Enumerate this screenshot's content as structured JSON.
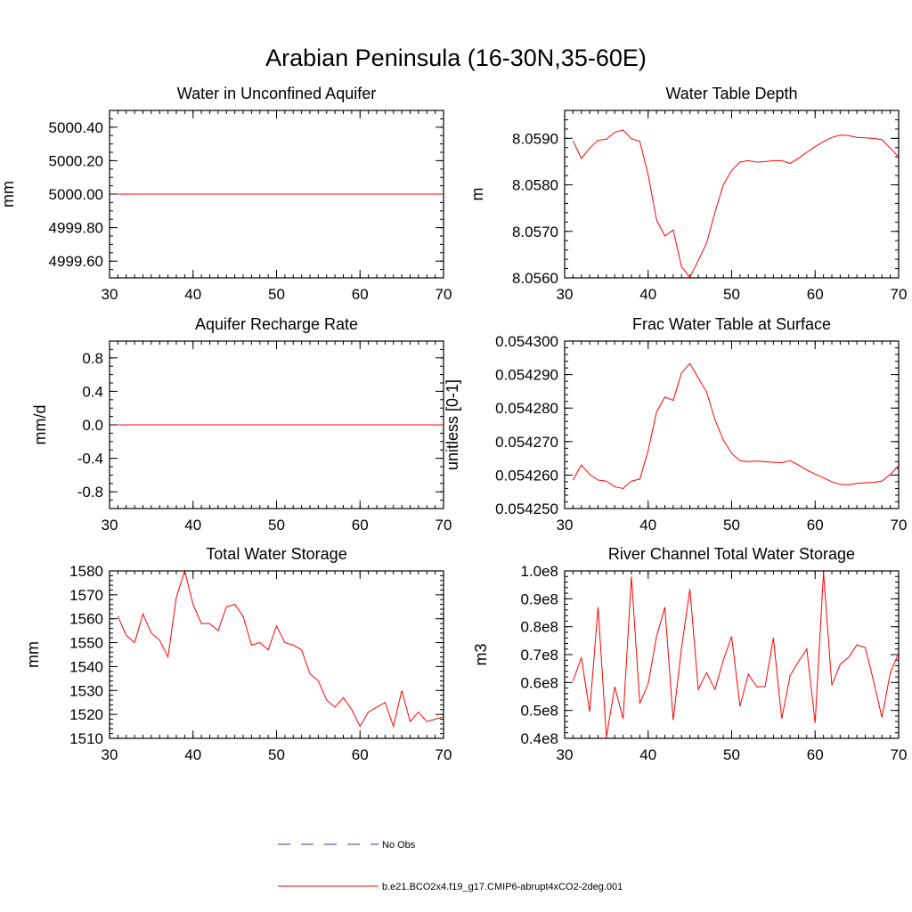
{
  "title": "Arabian Peninsula (16-30N,35-60E)",
  "chart_data": [
    {
      "type": "line",
      "title": "Water in Unconfined Aquifer",
      "ylabel": "mm",
      "xlim": [
        30,
        70
      ],
      "ylim": [
        4999.5,
        5000.5
      ],
      "xticks": [
        30,
        40,
        50,
        60,
        70
      ],
      "xtick_labels": [
        "30",
        "40",
        "50",
        "60",
        "70"
      ],
      "yticks": [
        4999.6,
        4999.8,
        5000.0,
        5000.2,
        5000.4
      ],
      "ytick_labels": [
        "4999.60",
        "4999.80",
        "5000.00",
        "5000.20",
        "5000.40"
      ],
      "minor_step": 0.05,
      "x": [
        31,
        32,
        33,
        34,
        35,
        36,
        37,
        38,
        39,
        40,
        41,
        42,
        43,
        44,
        45,
        46,
        47,
        48,
        49,
        50,
        51,
        52,
        53,
        54,
        55,
        56,
        57,
        58,
        59,
        60,
        61,
        62,
        63,
        64,
        65,
        66,
        67,
        68,
        69,
        70
      ],
      "series": [
        {
          "name": "b.e21.BCO2x4.f19_g17.CMIP6-abrupt4xCO2-2deg.001",
          "color": "#ff0000",
          "values": [
            5000,
            5000,
            5000,
            5000,
            5000,
            5000,
            5000,
            5000,
            5000,
            5000,
            5000,
            5000,
            5000,
            5000,
            5000,
            5000,
            5000,
            5000,
            5000,
            5000,
            5000,
            5000,
            5000,
            5000,
            5000,
            5000,
            5000,
            5000,
            5000,
            5000,
            5000,
            5000,
            5000,
            5000,
            5000,
            5000,
            5000,
            5000,
            5000,
            5000
          ]
        }
      ]
    },
    {
      "type": "line",
      "title": "Water Table Depth",
      "ylabel": "m",
      "xlim": [
        30,
        70
      ],
      "ylim": [
        8.056,
        8.0596
      ],
      "xticks": [
        30,
        40,
        50,
        60,
        70
      ],
      "xtick_labels": [
        "30",
        "40",
        "50",
        "60",
        "70"
      ],
      "yticks": [
        8.056,
        8.057,
        8.058,
        8.059
      ],
      "ytick_labels": [
        "8.0560",
        "8.0570",
        "8.0580",
        "8.0590"
      ],
      "minor_step": 0.0002,
      "x": [
        31,
        32,
        33,
        34,
        35,
        36,
        37,
        38,
        39,
        40,
        41,
        42,
        43,
        44,
        45,
        46,
        47,
        48,
        49,
        50,
        51,
        52,
        53,
        54,
        55,
        56,
        57,
        58,
        59,
        60,
        61,
        62,
        63,
        64,
        65,
        66,
        67,
        68,
        69,
        70
      ],
      "series": [
        {
          "name": "b.e21.BCO2x4.f19_g17.CMIP6-abrupt4xCO2-2deg.001",
          "color": "#ff0000",
          "values": [
            8.05895,
            8.05857,
            8.05879,
            8.05896,
            8.05898,
            8.05913,
            8.05918,
            8.05899,
            8.05894,
            8.05822,
            8.05725,
            8.0569,
            8.05703,
            8.05624,
            8.05601,
            8.05637,
            8.05675,
            8.05741,
            8.058,
            8.05831,
            8.05849,
            8.05852,
            8.05849,
            8.0585,
            8.05852,
            8.05852,
            8.05846,
            8.05857,
            8.0587,
            8.05882,
            8.05893,
            8.05902,
            8.05907,
            8.05906,
            8.05902,
            8.05901,
            8.059,
            8.05897,
            8.05879,
            8.0586
          ]
        }
      ]
    },
    {
      "type": "line",
      "title": "Aquifer Recharge Rate",
      "ylabel": "mm/d",
      "xlim": [
        30,
        70
      ],
      "ylim": [
        -1.0,
        1.0
      ],
      "xticks": [
        30,
        40,
        50,
        60,
        70
      ],
      "xtick_labels": [
        "30",
        "40",
        "50",
        "60",
        "70"
      ],
      "yticks": [
        -0.8,
        -0.4,
        0.0,
        0.4,
        0.8
      ],
      "ytick_labels": [
        "-0.8",
        "-0.4",
        "0.0",
        "0.4",
        "0.8"
      ],
      "minor_step": 0.1,
      "x": [
        31,
        32,
        33,
        34,
        35,
        36,
        37,
        38,
        39,
        40,
        41,
        42,
        43,
        44,
        45,
        46,
        47,
        48,
        49,
        50,
        51,
        52,
        53,
        54,
        55,
        56,
        57,
        58,
        59,
        60,
        61,
        62,
        63,
        64,
        65,
        66,
        67,
        68,
        69,
        70
      ],
      "series": [
        {
          "name": "b.e21.BCO2x4.f19_g17.CMIP6-abrupt4xCO2-2deg.001",
          "color": "#ff0000",
          "values": [
            0,
            0,
            0,
            0,
            0,
            0,
            0,
            0,
            0,
            0,
            0,
            0,
            0,
            0,
            0,
            0,
            0,
            0,
            0,
            0,
            0,
            0,
            0,
            0,
            0,
            0,
            0,
            0,
            0,
            0,
            0,
            0,
            0,
            0,
            0,
            0,
            0,
            0,
            0,
            0
          ]
        }
      ]
    },
    {
      "type": "line",
      "title": "Frac Water Table at Surface",
      "ylabel": "unitless [0-1]",
      "xlim": [
        30,
        70
      ],
      "ylim": [
        0.05425,
        0.0543
      ],
      "xticks": [
        30,
        40,
        50,
        60,
        70
      ],
      "xtick_labels": [
        "30",
        "40",
        "50",
        "60",
        "70"
      ],
      "yticks": [
        0.05425,
        0.05426,
        0.05427,
        0.05428,
        0.05429,
        0.0543
      ],
      "ytick_labels": [
        "0.054250",
        "0.054260",
        "0.054270",
        "0.054280",
        "0.054290",
        "0.054300"
      ],
      "minor_step": 2e-06,
      "x": [
        31,
        32,
        33,
        34,
        35,
        36,
        37,
        38,
        39,
        40,
        41,
        42,
        43,
        44,
        45,
        46,
        47,
        48,
        49,
        50,
        51,
        52,
        53,
        54,
        55,
        56,
        57,
        58,
        59,
        60,
        61,
        62,
        63,
        64,
        65,
        66,
        67,
        68,
        69,
        70
      ],
      "series": [
        {
          "name": "b.e21.BCO2x4.f19_g17.CMIP6-abrupt4xCO2-2deg.001",
          "color": "#ff0000",
          "values": [
            0.0542585,
            0.054263,
            0.0542602,
            0.0542585,
            0.0542582,
            0.0542565,
            0.054256,
            0.0542582,
            0.0542588,
            0.0542673,
            0.0542788,
            0.0542833,
            0.0542823,
            0.0542905,
            0.0542933,
            0.054289,
            0.0542848,
            0.0542765,
            0.0542705,
            0.0542665,
            0.0542643,
            0.054264,
            0.0542642,
            0.054264,
            0.0542638,
            0.0542637,
            0.0542643,
            0.054263,
            0.0542615,
            0.0542603,
            0.0542592,
            0.054258,
            0.0542572,
            0.0542571,
            0.0542575,
            0.0542577,
            0.0542578,
            0.0542582,
            0.0542602,
            0.0542628
          ]
        }
      ]
    },
    {
      "type": "line",
      "title": "Total Water Storage",
      "ylabel": "mm",
      "xlim": [
        30,
        70
      ],
      "ylim": [
        1510,
        1580
      ],
      "xticks": [
        30,
        40,
        50,
        60,
        70
      ],
      "xtick_labels": [
        "30",
        "40",
        "50",
        "60",
        "70"
      ],
      "yticks": [
        1510,
        1520,
        1530,
        1540,
        1550,
        1560,
        1570,
        1580
      ],
      "ytick_labels": [
        "1510",
        "1520",
        "1530",
        "1540",
        "1550",
        "1560",
        "1570",
        "1580"
      ],
      "minor_step": 2,
      "x": [
        31,
        32,
        33,
        34,
        35,
        36,
        37,
        38,
        39,
        40,
        41,
        42,
        43,
        44,
        45,
        46,
        47,
        48,
        49,
        50,
        51,
        52,
        53,
        54,
        55,
        56,
        57,
        58,
        59,
        60,
        61,
        62,
        63,
        64,
        65,
        66,
        67,
        68,
        69,
        70
      ],
      "series": [
        {
          "name": "b.e21.BCO2x4.f19_g17.CMIP6-abrupt4xCO2-2deg.001",
          "color": "#ff0000",
          "values": [
            1561,
            1553,
            1550,
            1562,
            1554,
            1551,
            1544,
            1569,
            1580,
            1566,
            1558,
            1558,
            1555,
            1565,
            1566,
            1561,
            1549,
            1550,
            1547,
            1557,
            1550,
            1549,
            1547,
            1537,
            1534,
            1526,
            1523,
            1527,
            1522,
            1515,
            1521,
            1523,
            1525,
            1515,
            1530,
            1517,
            1521,
            1517,
            1518,
            1519
          ]
        }
      ]
    },
    {
      "type": "line",
      "title": "River Channel Total Water Storage",
      "ylabel": "m3",
      "xlim": [
        30,
        70
      ],
      "ylim": [
        40000000,
        100000000
      ],
      "xticks": [
        30,
        40,
        50,
        60,
        70
      ],
      "xtick_labels": [
        "30",
        "40",
        "50",
        "60",
        "70"
      ],
      "yticks": [
        40000000,
        50000000,
        60000000,
        70000000,
        80000000,
        90000000,
        100000000
      ],
      "ytick_labels": [
        "0.4e8",
        "0.5e8",
        "0.6e8",
        "0.7e8",
        "0.8e8",
        "0.9e8",
        "1.0e8"
      ],
      "minor_step": 2000000,
      "x": [
        31,
        32,
        33,
        34,
        35,
        36,
        37,
        38,
        39,
        40,
        41,
        42,
        43,
        44,
        45,
        46,
        47,
        48,
        49,
        50,
        51,
        52,
        53,
        54,
        55,
        56,
        57,
        58,
        59,
        60,
        61,
        62,
        63,
        64,
        65,
        66,
        67,
        68,
        69,
        70
      ],
      "series": [
        {
          "name": "b.e21.BCO2x4.f19_g17.CMIP6-abrupt4xCO2-2deg.001",
          "color": "#ff0000",
          "values": [
            60500000,
            69000000,
            49500000,
            87000000,
            40500000,
            58500000,
            47000000,
            98000000,
            52500000,
            59500000,
            76500000,
            87000000,
            46500000,
            72500000,
            93500000,
            57500000,
            63500000,
            57500000,
            68000000,
            76500000,
            51500000,
            63000000,
            58500000,
            58500000,
            76000000,
            47000000,
            62500000,
            67500000,
            72000000,
            45500000,
            99500000,
            59000000,
            66500000,
            69000000,
            73500000,
            72500000,
            60500000,
            47500000,
            63500000,
            70500000
          ]
        }
      ]
    }
  ],
  "legend": [
    {
      "label": "No Obs",
      "color": "#3333aa",
      "style": "dashed"
    },
    {
      "label": "b.e21.BCO2x4.f19_g17.CMIP6-abrupt4xCO2-2deg.001",
      "color": "#ff0000",
      "style": "solid"
    }
  ]
}
